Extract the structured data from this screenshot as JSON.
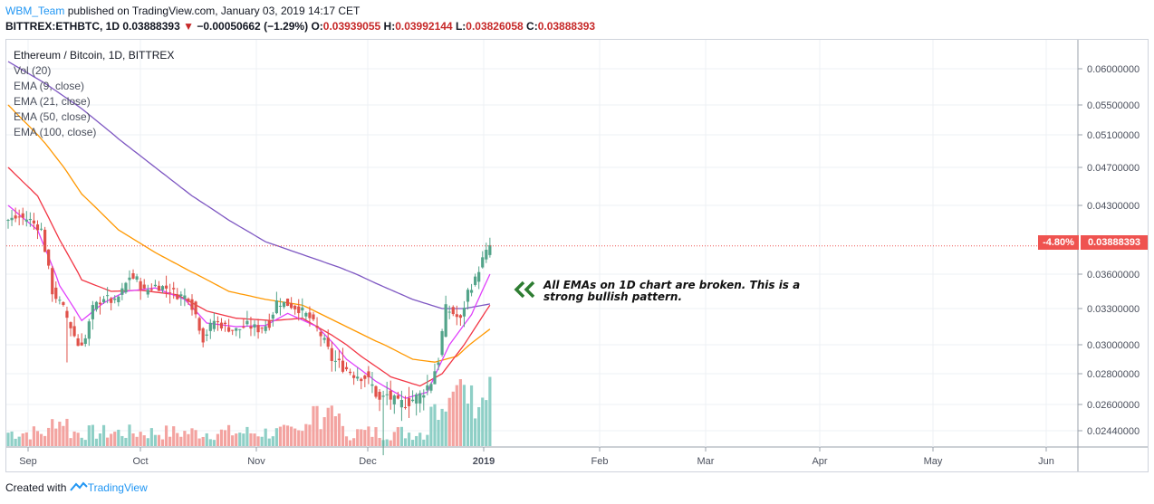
{
  "header": {
    "user": "WBM_Team",
    "published": "published on TradingView.com, January 03, 2019 14:17 CET",
    "symbol": "BITTREX:ETHBTC, 1D",
    "last": "0.03888393",
    "change": "−0.00050662 (−1.29%)",
    "o_label": "O:",
    "o": "0.03939055",
    "h_label": "H:",
    "h": "0.03992144",
    "l_label": "L:",
    "l": "0.03826058",
    "c_label": "C:",
    "c": "0.03888393"
  },
  "legend": {
    "title": "Ethereum / Bitcoin, 1D, BITTREX",
    "items": [
      "Vol (20)",
      "EMA (9, close)",
      "EMA (21, close)",
      "EMA (50, close)",
      "EMA (100, close)"
    ]
  },
  "annotation": {
    "text": "All EMAs on 1D chart are broken. This is a strong bullish pattern."
  },
  "tags": {
    "pct": "-4.80%",
    "price": "0.03888393"
  },
  "footer": {
    "prefix": "Created with",
    "brand": "TradingView"
  },
  "colors": {
    "up": "#53a48a",
    "down": "#e0524a",
    "vol_up": "#8ecfc6",
    "vol_down": "#f3a3a0",
    "ema9": "#e040fb",
    "ema21": "#f23645",
    "ema50": "#ff9800",
    "ema100": "#7e57c2",
    "price_line": "#ef5350"
  },
  "chart_data": {
    "type": "candlestick",
    "title": "Ethereum / Bitcoin, 1D, BITTREX",
    "x_ticks": [
      "Sep",
      "Oct",
      "Nov",
      "Dec",
      "2019",
      "Feb",
      "Mar",
      "Apr",
      "May",
      "Jun"
    ],
    "y_ticks": [
      "0.06000000",
      "0.05500000",
      "0.05100000",
      "0.04700000",
      "0.04300000",
      "0.03600000",
      "0.03300000",
      "0.03000000",
      "0.02800000",
      "0.02600000",
      "0.02440000"
    ],
    "current_price": 0.03888393,
    "candles_approx": {
      "start": "Aug 24 2018",
      "end": "Jan 03 2019",
      "close_path": [
        [
          0,
          0.0415
        ],
        [
          3,
          0.0418
        ],
        [
          6,
          0.0415
        ],
        [
          9,
          0.0405
        ],
        [
          12,
          0.0345
        ],
        [
          15,
          0.033
        ],
        [
          17,
          0.0315
        ],
        [
          19,
          0.03
        ],
        [
          21,
          0.0305
        ],
        [
          23,
          0.033
        ],
        [
          26,
          0.034
        ],
        [
          29,
          0.0335
        ],
        [
          31,
          0.0345
        ],
        [
          33,
          0.0358
        ],
        [
          35,
          0.0355
        ],
        [
          37,
          0.0345
        ],
        [
          40,
          0.035
        ],
        [
          43,
          0.0348
        ],
        [
          46,
          0.0342
        ],
        [
          49,
          0.034
        ],
        [
          51,
          0.0325
        ],
        [
          53,
          0.0305
        ],
        [
          56,
          0.032
        ],
        [
          59,
          0.0315
        ],
        [
          62,
          0.0312
        ],
        [
          65,
          0.0316
        ],
        [
          68,
          0.0313
        ],
        [
          71,
          0.0318
        ],
        [
          73,
          0.0336
        ],
        [
          76,
          0.0334
        ],
        [
          79,
          0.033
        ],
        [
          82,
          0.0322
        ],
        [
          85,
          0.0308
        ],
        [
          88,
          0.029
        ],
        [
          91,
          0.0285
        ],
        [
          94,
          0.028
        ],
        [
          97,
          0.0278
        ],
        [
          99,
          0.0272
        ],
        [
          101,
          0.0262
        ],
        [
          103,
          0.0266
        ],
        [
          106,
          0.026
        ],
        [
          109,
          0.0262
        ],
        [
          112,
          0.0266
        ],
        [
          115,
          0.0275
        ],
        [
          117,
          0.029
        ],
        [
          119,
          0.033
        ],
        [
          121,
          0.0326
        ],
        [
          123,
          0.032
        ],
        [
          125,
          0.0345
        ],
        [
          127,
          0.0355
        ],
        [
          129,
          0.0375
        ],
        [
          131,
          0.0389
        ]
      ],
      "ema9_path": [
        [
          0,
          0.043
        ],
        [
          8,
          0.0405
        ],
        [
          14,
          0.035
        ],
        [
          20,
          0.032
        ],
        [
          26,
          0.0335
        ],
        [
          32,
          0.0345
        ],
        [
          40,
          0.0348
        ],
        [
          48,
          0.0338
        ],
        [
          54,
          0.0318
        ],
        [
          62,
          0.0315
        ],
        [
          70,
          0.0316
        ],
        [
          76,
          0.0326
        ],
        [
          84,
          0.0315
        ],
        [
          92,
          0.029
        ],
        [
          100,
          0.0275
        ],
        [
          108,
          0.0264
        ],
        [
          114,
          0.0268
        ],
        [
          120,
          0.03
        ],
        [
          126,
          0.0325
        ],
        [
          131,
          0.036
        ]
      ],
      "ema21_path": [
        [
          0,
          0.047
        ],
        [
          8,
          0.044
        ],
        [
          14,
          0.0395
        ],
        [
          20,
          0.0355
        ],
        [
          28,
          0.0345
        ],
        [
          36,
          0.0346
        ],
        [
          46,
          0.0342
        ],
        [
          54,
          0.0328
        ],
        [
          62,
          0.0322
        ],
        [
          72,
          0.032
        ],
        [
          80,
          0.0322
        ],
        [
          88,
          0.0308
        ],
        [
          96,
          0.0292
        ],
        [
          104,
          0.0278
        ],
        [
          112,
          0.0272
        ],
        [
          118,
          0.028
        ],
        [
          124,
          0.03
        ],
        [
          131,
          0.0333
        ]
      ],
      "ema50_path": [
        [
          0,
          0.055
        ],
        [
          10,
          0.05
        ],
        [
          20,
          0.0442
        ],
        [
          30,
          0.0405
        ],
        [
          40,
          0.0382
        ],
        [
          50,
          0.0362
        ],
        [
          60,
          0.0345
        ],
        [
          70,
          0.0338
        ],
        [
          80,
          0.0333
        ],
        [
          90,
          0.0318
        ],
        [
          100,
          0.0303
        ],
        [
          110,
          0.029
        ],
        [
          116,
          0.0288
        ],
        [
          122,
          0.0292
        ],
        [
          131,
          0.0313
        ]
      ],
      "ema100_path": [
        [
          0,
          0.061
        ],
        [
          10,
          0.058
        ],
        [
          20,
          0.0545
        ],
        [
          30,
          0.0505
        ],
        [
          40,
          0.047
        ],
        [
          50,
          0.044
        ],
        [
          60,
          0.0415
        ],
        [
          70,
          0.0393
        ],
        [
          80,
          0.038
        ],
        [
          90,
          0.0367
        ],
        [
          100,
          0.0352
        ],
        [
          110,
          0.0338
        ],
        [
          118,
          0.033
        ],
        [
          124,
          0.033
        ],
        [
          131,
          0.0334
        ]
      ]
    },
    "volume_note": "Vol (20) histogram, elevated in late December 2018"
  }
}
